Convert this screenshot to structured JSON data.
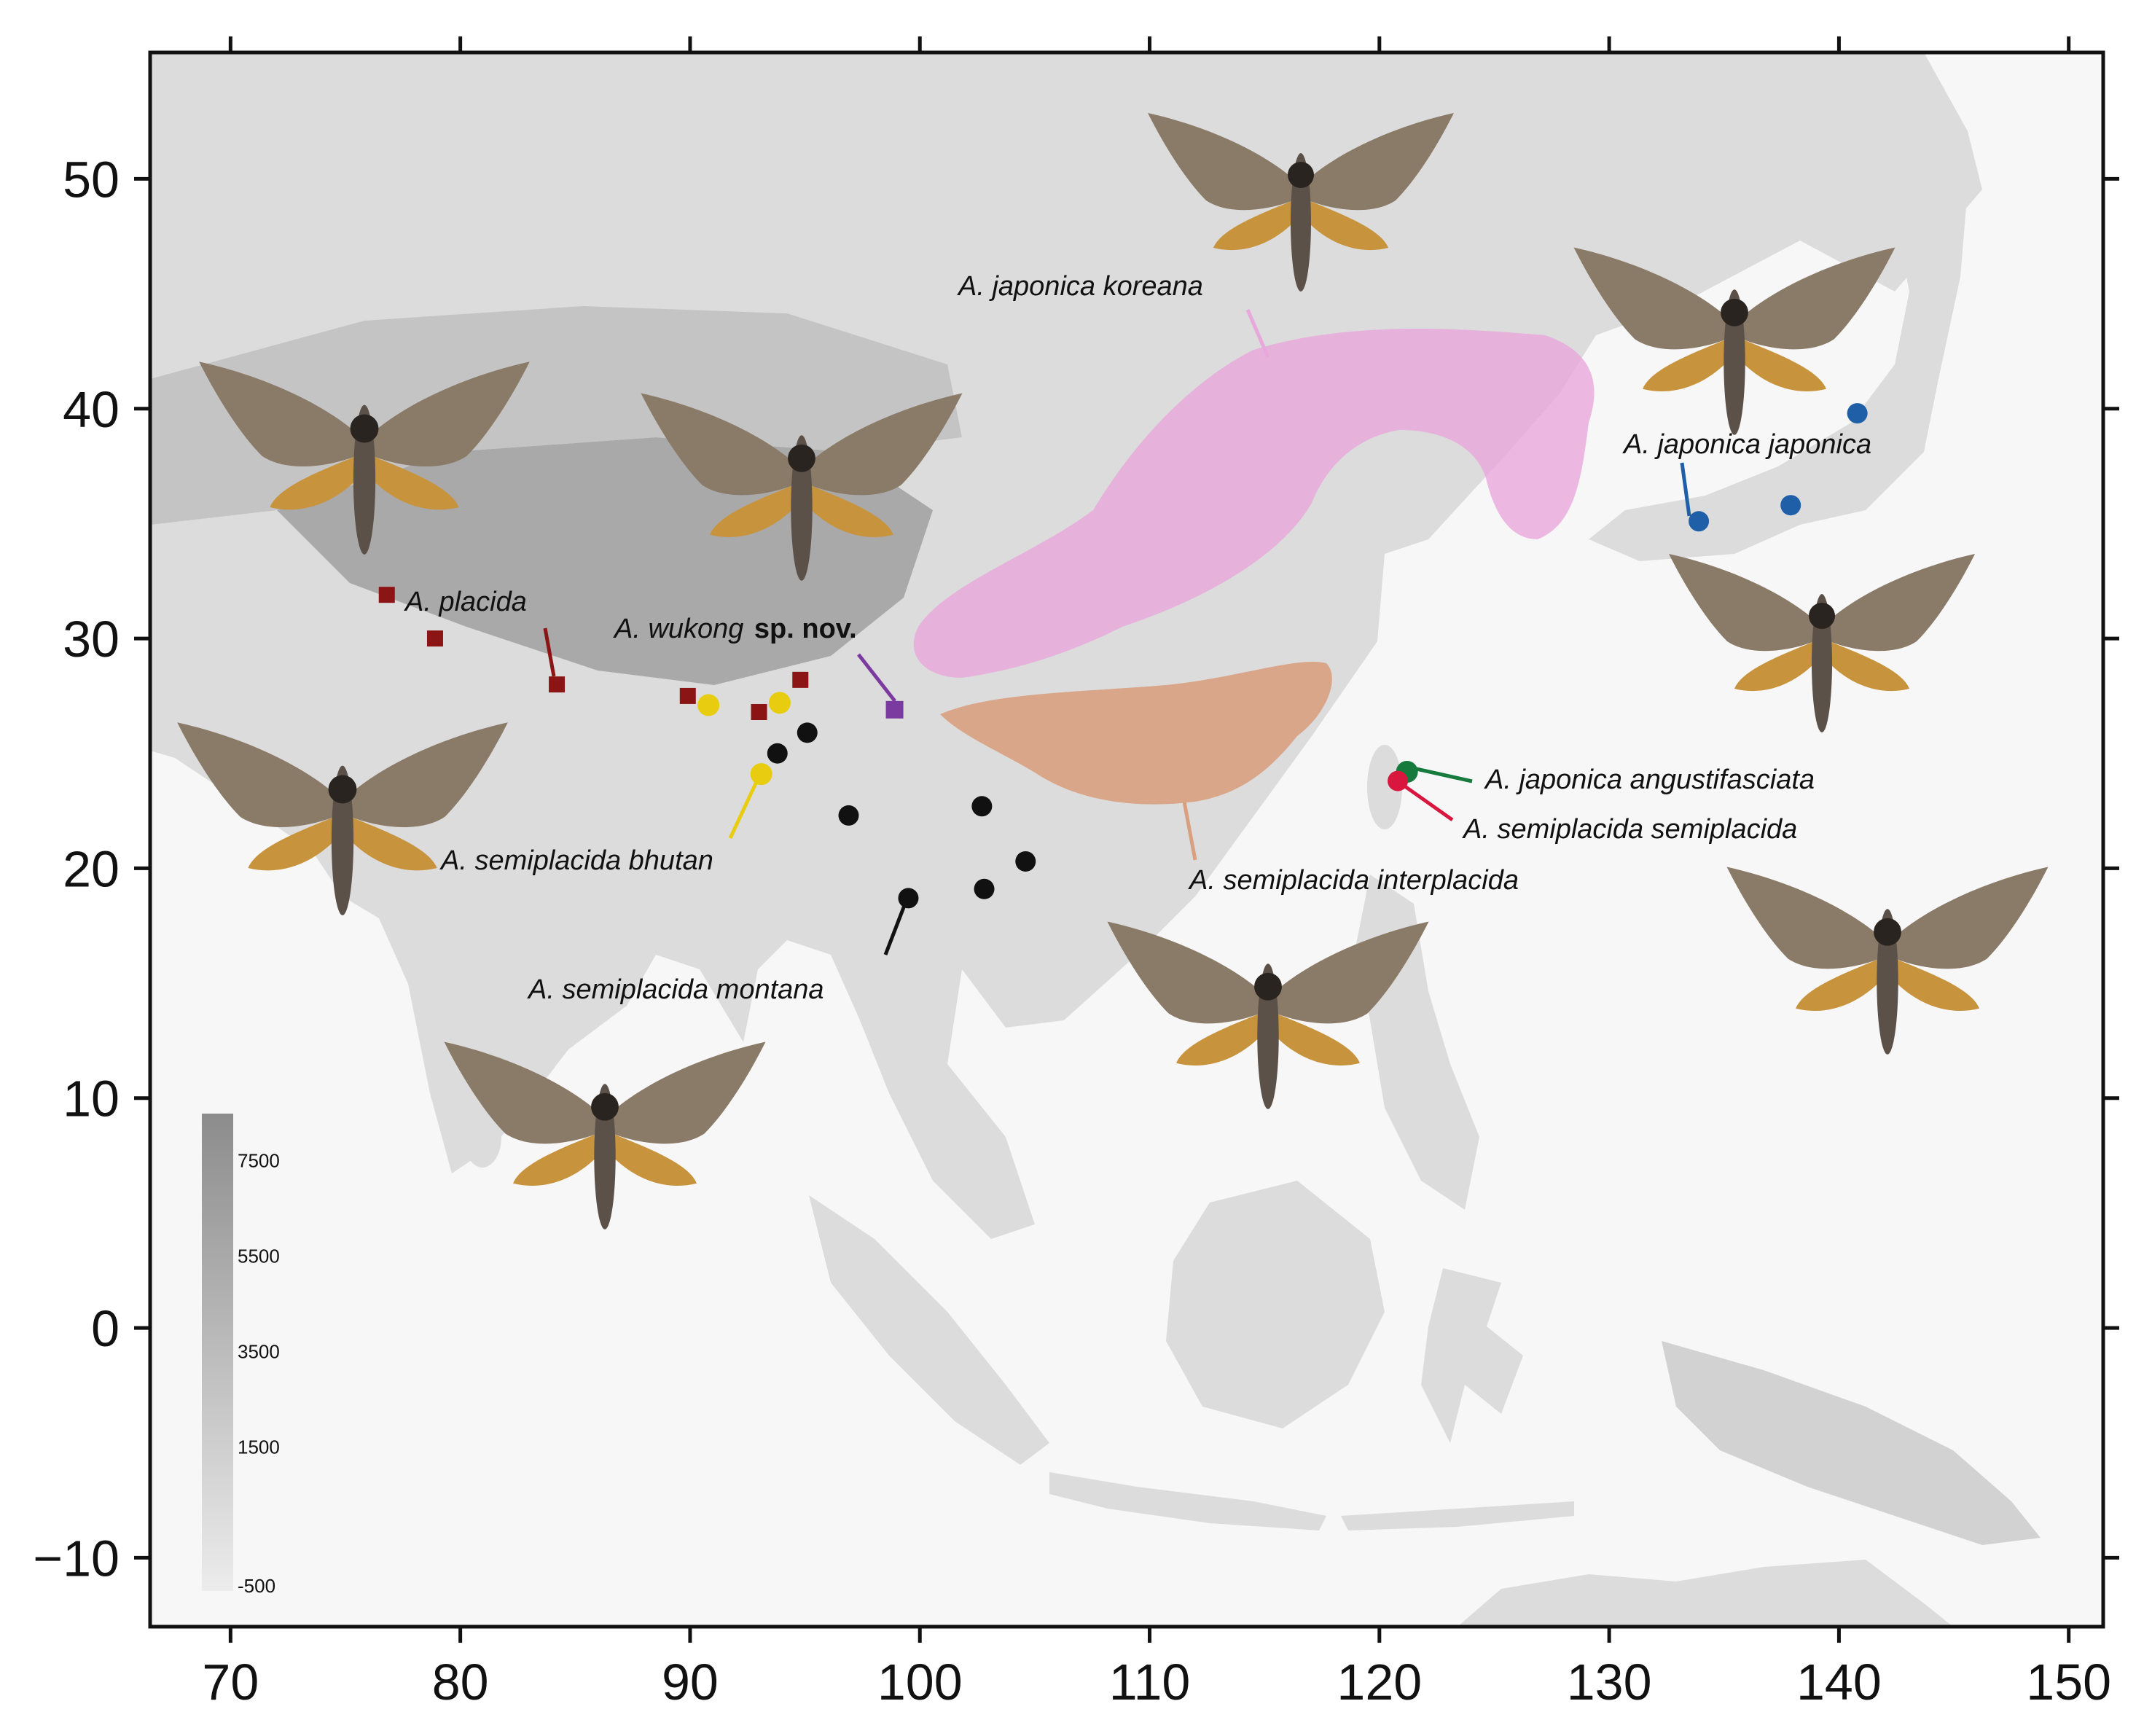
{
  "map": {
    "x_ticks": [
      "70",
      "80",
      "90",
      "100",
      "110",
      "120",
      "130",
      "140",
      "150"
    ],
    "y_ticks": [
      "50",
      "40",
      "30",
      "20",
      "10",
      "0",
      "−10"
    ],
    "x_range": [
      66.5,
      151.5
    ],
    "y_range": [
      -13,
      55.5
    ],
    "colors": {
      "frame": "#111111",
      "land": "#dcdcdc",
      "ocean": "#f7f7f7",
      "placida": "#8b1414",
      "wukong": "#7a3aa0",
      "bhutan": "#e8cc10",
      "montana": "#111111",
      "japonica_japonica": "#1f5fa8",
      "angustifasciata": "#157a3c",
      "semiplacida": "#d8163e",
      "koreana_range": "#e8a8dc",
      "interplacida_range": "#d9a07f"
    }
  },
  "labels": {
    "koreana": "A. japonica koreana",
    "japonica": "A. japonica japonica",
    "placida": "A. placida",
    "wukong_genus": "A. wukong",
    "wukong_status": "sp. nov.",
    "angustifasciata": "A. japonica angustifasciata",
    "semiplacida": "A. semiplacida semiplacida",
    "interplacida": "A. semiplacida interplacida",
    "bhutan": "A. semiplacida bhutan",
    "montana": "A. semiplacida montana"
  },
  "records": {
    "placida": [
      [
        76.8,
        31.9
      ],
      [
        78.9,
        30.0
      ],
      [
        84.2,
        28.0
      ],
      [
        89.9,
        27.5
      ],
      [
        93.0,
        26.8
      ],
      [
        94.8,
        28.2
      ]
    ],
    "wukong": [
      [
        98.9,
        26.9
      ]
    ],
    "bhutan": [
      [
        90.8,
        27.1
      ],
      [
        93.9,
        27.2
      ],
      [
        93.1,
        24.1
      ]
    ],
    "montana": [
      [
        93.8,
        25.0
      ],
      [
        95.1,
        25.9
      ],
      [
        96.9,
        22.3
      ],
      [
        102.7,
        22.7
      ],
      [
        104.6,
        20.3
      ],
      [
        99.5,
        18.7
      ],
      [
        102.8,
        19.1
      ]
    ],
    "japonica_japonica": [
      [
        140.8,
        39.8
      ],
      [
        137.9,
        35.8
      ],
      [
        133.9,
        35.1
      ]
    ],
    "angustifasciata": [
      [
        121.2,
        24.2
      ]
    ],
    "semiplacida": [
      [
        120.8,
        23.8
      ]
    ]
  },
  "elevation_scale": {
    "labels": [
      "7500",
      "5500",
      "3500",
      "1500",
      "-500"
    ]
  }
}
